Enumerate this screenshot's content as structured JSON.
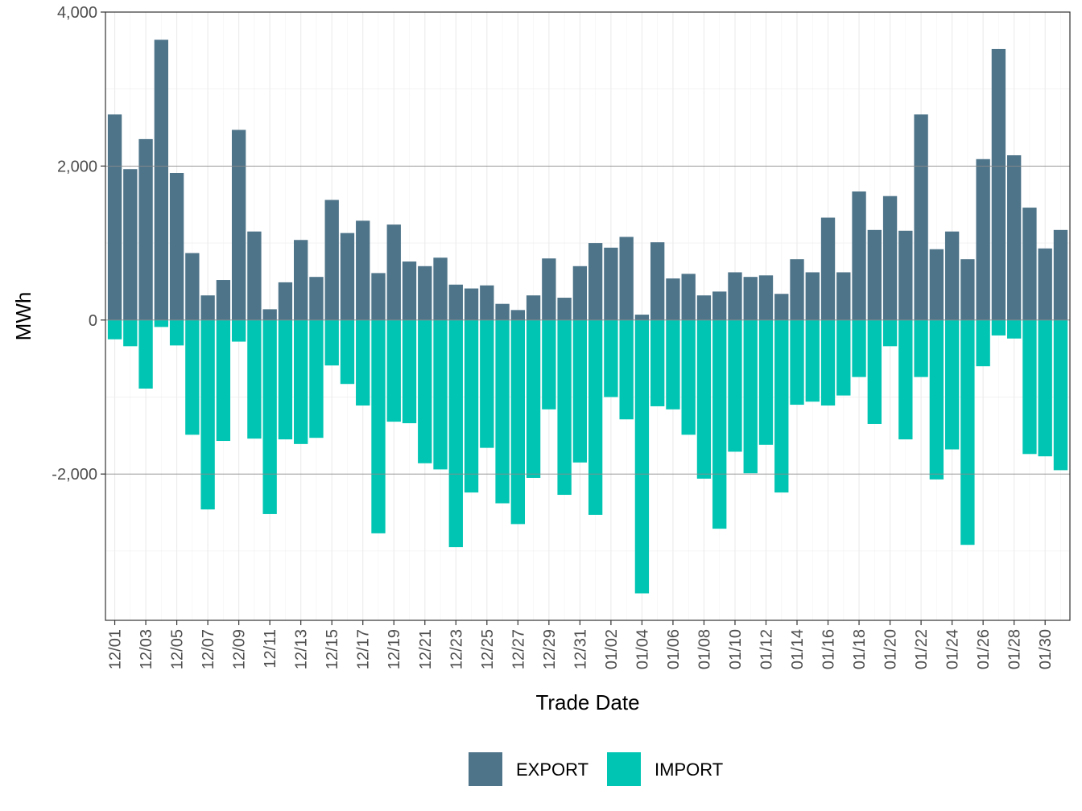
{
  "chart_data": {
    "type": "bar",
    "stacking": "diverging",
    "xlabel": "Trade Date",
    "ylabel": "MWh",
    "ylim": [
      -3900,
      4000
    ],
    "y_ticks": [
      4000,
      2000,
      0,
      -2000
    ],
    "y_tick_labels": [
      "4,000",
      "2,000",
      "0",
      "-2,000"
    ],
    "grid": true,
    "legend_position": "bottom",
    "categories": [
      "12/01",
      "12/02",
      "12/03",
      "12/04",
      "12/05",
      "12/06",
      "12/07",
      "12/08",
      "12/09",
      "12/10",
      "12/11",
      "12/12",
      "12/13",
      "12/14",
      "12/15",
      "12/16",
      "12/17",
      "12/18",
      "12/19",
      "12/20",
      "12/21",
      "12/22",
      "12/23",
      "12/24",
      "12/25",
      "12/26",
      "12/27",
      "12/28",
      "12/29",
      "12/30",
      "12/31",
      "01/01",
      "01/02",
      "01/03",
      "01/04",
      "01/05",
      "01/06",
      "01/07",
      "01/08",
      "01/09",
      "01/10",
      "01/11",
      "01/12",
      "01/13",
      "01/14",
      "01/15",
      "01/16",
      "01/17",
      "01/18",
      "01/19",
      "01/20",
      "01/21",
      "01/22",
      "01/23",
      "01/24",
      "01/25",
      "01/26",
      "01/27",
      "01/28",
      "01/29",
      "01/30",
      "01/31"
    ],
    "tick_labels": [
      "12/01",
      "12/03",
      "12/05",
      "12/07",
      "12/09",
      "12/11",
      "12/13",
      "12/15",
      "12/17",
      "12/19",
      "12/21",
      "12/23",
      "12/25",
      "12/27",
      "12/29",
      "12/31",
      "01/02",
      "01/04",
      "01/06",
      "01/08",
      "01/10",
      "01/12",
      "01/14",
      "01/16",
      "01/18",
      "01/20",
      "01/22",
      "01/24",
      "01/26",
      "01/28",
      "01/30"
    ],
    "series": [
      {
        "name": "EXPORT",
        "color": "#4e7489",
        "values": [
          2670,
          1960,
          2350,
          3640,
          1910,
          870,
          320,
          520,
          2470,
          1150,
          140,
          490,
          1040,
          560,
          1560,
          1130,
          1290,
          610,
          1240,
          760,
          700,
          810,
          460,
          410,
          450,
          210,
          130,
          320,
          800,
          290,
          700,
          1000,
          940,
          1080,
          70,
          1010,
          540,
          600,
          320,
          370,
          620,
          560,
          580,
          340,
          790,
          620,
          1330,
          620,
          1670,
          1170,
          1610,
          1160,
          2670,
          920,
          1150,
          790,
          2090,
          3520,
          2140,
          1460,
          930,
          1170
        ]
      },
      {
        "name": "IMPORT",
        "color": "#00c5b2",
        "values": [
          -250,
          -340,
          -890,
          -90,
          -330,
          -1490,
          -2460,
          -1570,
          -280,
          -1540,
          -2520,
          -1550,
          -1610,
          -1530,
          -590,
          -830,
          -1110,
          -2770,
          -1320,
          -1340,
          -1860,
          -1940,
          -2950,
          -2240,
          -1660,
          -2380,
          -2650,
          -2050,
          -1160,
          -2270,
          -1850,
          -2530,
          -1000,
          -1290,
          -3550,
          -1120,
          -1160,
          -1490,
          -2060,
          -2710,
          -1710,
          -1990,
          -1620,
          -2240,
          -1100,
          -1060,
          -1110,
          -980,
          -740,
          -1350,
          -340,
          -1550,
          -740,
          -2070,
          -1680,
          -2920,
          -600,
          -200,
          -240,
          -1740,
          -1770,
          -1950
        ]
      }
    ]
  }
}
